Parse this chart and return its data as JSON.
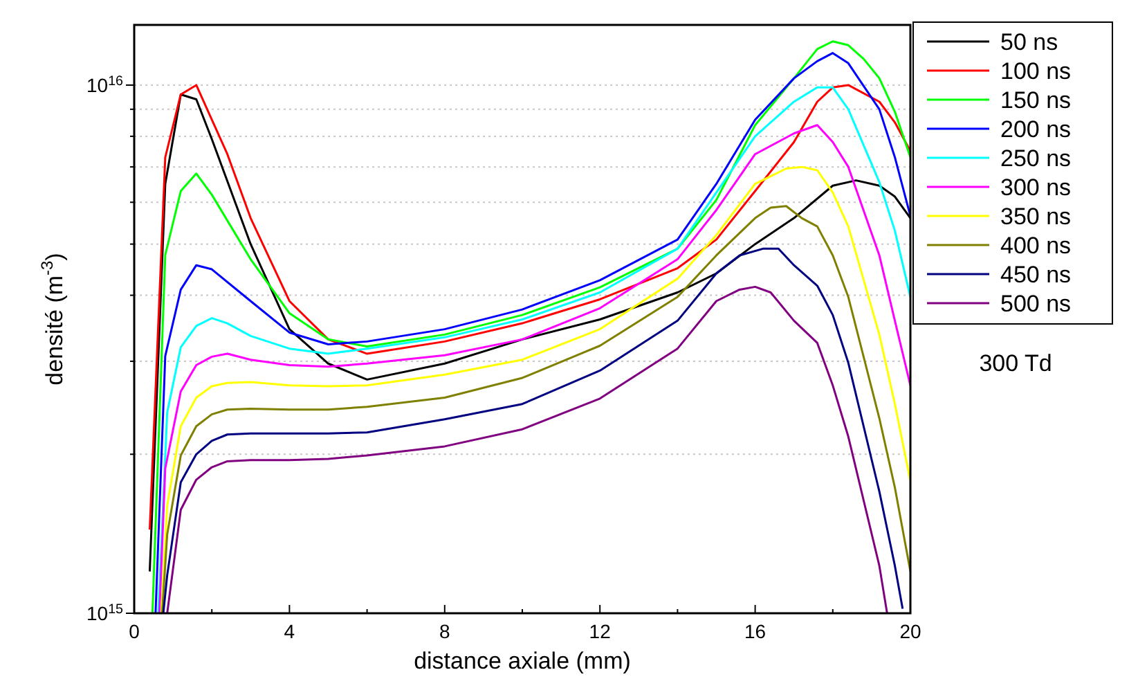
{
  "chart_data": {
    "type": "line",
    "xlabel": "distance axiale (mm)",
    "ylabel": "densité (m$^{-3}$)",
    "log": "y",
    "grid": "y",
    "legend": "right",
    "marker": "none",
    "line_style": "solid",
    "annotations": [
      "300 Td"
    ],
    "xlim": [
      0,
      20
    ],
    "xticks": [
      0,
      {
        "value": 2,
        "label": null
      },
      4,
      {
        "value": 6,
        "label": null
      },
      8,
      {
        "value": 10,
        "label": null
      },
      12,
      {
        "value": 14,
        "label": null
      },
      16,
      {
        "value": 18,
        "label": null
      },
      20
    ],
    "ylim": [
      1000000000000000.0,
      1.3e+16
    ],
    "yticks": [
      {
        "value": 1000000000000000.0,
        "label": "10$^{15}$"
      },
      {
        "value": 2000000000000000.0,
        "label": null
      },
      {
        "value": 3000000000000000.0,
        "label": null
      },
      {
        "value": 4000000000000000.0,
        "label": null
      },
      {
        "value": 5000000000000000.0,
        "label": null
      },
      {
        "value": 6000000000000000.0,
        "label": null
      },
      {
        "value": 7000000000000000.0,
        "label": null
      },
      {
        "value": 8000000000000000.0,
        "label": null
      },
      {
        "value": 9000000000000000.0,
        "label": null
      },
      {
        "value": 1e+16,
        "label": "10$^{16}$"
      }
    ],
    "series": [
      {
        "name": "50 ns",
        "color": "#000000",
        "x": [
          0.4,
          0.8,
          1.2,
          1.6,
          2,
          3,
          4,
          5,
          6,
          8,
          10,
          12,
          14,
          15,
          16,
          17,
          18,
          18.6,
          19.2,
          19.6,
          20
        ],
        "values": [
          1200000000000000.0,
          6500000000000000.0,
          9600000000000000.0,
          9400000000000000.0,
          7900000000000000.0,
          5000000000000000.0,
          3450000000000000.0,
          2970000000000000.0,
          2770000000000000.0,
          2970000000000000.0,
          3300000000000000.0,
          3600000000000000.0,
          4050000000000000.0,
          4400000000000000.0,
          5000000000000000.0,
          5600000000000000.0,
          6450000000000000.0,
          6600000000000000.0,
          6450000000000000.0,
          6150000000000000.0,
          5600000000000000.0
        ]
      },
      {
        "name": "100 ns",
        "color": "#ff0000",
        "x": [
          0.4,
          0.8,
          1.2,
          1.6,
          2,
          2.4,
          3,
          4,
          5,
          6,
          8,
          10,
          12,
          14,
          15,
          16,
          17,
          17.6,
          18,
          18.4,
          19.2,
          19.6,
          20
        ],
        "values": [
          1440000000000000.0,
          7300000000000000.0,
          9600000000000000.0,
          1e+16,
          8600000000000000.0,
          7400000000000000.0,
          5600000000000000.0,
          3900000000000000.0,
          3300000000000000.0,
          3100000000000000.0,
          3270000000000000.0,
          3540000000000000.0,
          3930000000000000.0,
          4500000000000000.0,
          5100000000000000.0,
          6300000000000000.0,
          7800000000000000.0,
          9300000000000000.0,
          9900000000000000.0,
          1e+16,
          9300000000000000.0,
          8500000000000000.0,
          7500000000000000.0
        ]
      },
      {
        "name": "150 ns",
        "color": "#00ff00",
        "x": [
          0.47,
          0.8,
          1.2,
          1.6,
          2,
          3,
          4,
          5,
          6,
          8,
          10,
          12,
          14,
          15,
          16,
          17,
          17.6,
          18,
          18.4,
          18.8,
          19.2,
          19.6,
          20
        ],
        "values": [
          1000000000000000.0,
          4770000000000000.0,
          6300000000000000.0,
          6800000000000000.0,
          6200000000000000.0,
          4680000000000000.0,
          3700000000000000.0,
          3300000000000000.0,
          3200000000000000.0,
          3370000000000000.0,
          3670000000000000.0,
          4140000000000000.0,
          4900000000000000.0,
          6060000000000000.0,
          8400000000000000.0,
          1.03e+16,
          1.17e+16,
          1.21e+16,
          1.19e+16,
          1.12e+16,
          1.03e+16,
          8900000000000000.0,
          7300000000000000.0
        ]
      },
      {
        "name": "200 ns",
        "color": "#0000ff",
        "x": [
          0.55,
          0.8,
          1.2,
          1.6,
          2,
          3,
          4,
          5,
          6,
          8,
          10,
          12,
          14,
          15,
          16,
          17,
          17.6,
          18,
          18.4,
          19.2,
          19.6,
          20
        ],
        "values": [
          1000000000000000.0,
          3070000000000000.0,
          4100000000000000.0,
          4560000000000000.0,
          4480000000000000.0,
          3900000000000000.0,
          3400000000000000.0,
          3230000000000000.0,
          3270000000000000.0,
          3450000000000000.0,
          3760000000000000.0,
          4270000000000000.0,
          5100000000000000.0,
          6500000000000000.0,
          8600000000000000.0,
          1.03e+16,
          1.11e+16,
          1.15e+16,
          1.1e+16,
          9000000000000000.0,
          7300000000000000.0,
          5650000000000000.0
        ]
      },
      {
        "name": "250 ns",
        "color": "#00ffff",
        "x": [
          0.62,
          0.85,
          1.2,
          1.6,
          2,
          2.4,
          3,
          4,
          5,
          6,
          8,
          10,
          12,
          14,
          15,
          16,
          17,
          17.6,
          18,
          18.4,
          19.2,
          19.6,
          20
        ],
        "values": [
          1000000000000000.0,
          2400000000000000.0,
          3190000000000000.0,
          3500000000000000.0,
          3620000000000000.0,
          3540000000000000.0,
          3350000000000000.0,
          3170000000000000.0,
          3100000000000000.0,
          3170000000000000.0,
          3330000000000000.0,
          3600000000000000.0,
          4050000000000000.0,
          4900000000000000.0,
          6260000000000000.0,
          8000000000000000.0,
          9300000000000000.0,
          9900000000000000.0,
          9900000000000000.0,
          9000000000000000.0,
          6550000000000000.0,
          5300000000000000.0,
          3970000000000000.0
        ]
      },
      {
        "name": "300 ns",
        "color": "#ff00ff",
        "x": [
          0.65,
          0.8,
          1.2,
          1.6,
          2,
          2.4,
          3,
          4,
          5,
          6,
          8,
          10,
          12,
          14,
          15,
          16,
          17,
          17.6,
          18,
          18.4,
          19.2,
          19.6,
          20
        ],
        "values": [
          1000000000000000.0,
          1880000000000000.0,
          2630000000000000.0,
          2950000000000000.0,
          3060000000000000.0,
          3100000000000000.0,
          3020000000000000.0,
          2950000000000000.0,
          2930000000000000.0,
          2970000000000000.0,
          3080000000000000.0,
          3300000000000000.0,
          3780000000000000.0,
          4680000000000000.0,
          5800000000000000.0,
          7400000000000000.0,
          8100000000000000.0,
          8400000000000000.0,
          7800000000000000.0,
          7000000000000000.0,
          4760000000000000.0,
          3580000000000000.0,
          2700000000000000.0
        ]
      },
      {
        "name": "350 ns",
        "color": "#ffff00",
        "x": [
          0.7,
          0.85,
          1.2,
          1.6,
          2,
          2.4,
          3,
          4,
          5,
          6,
          8,
          10,
          12,
          14,
          15,
          16,
          16.8,
          17.2,
          17.6,
          18,
          18.4,
          19.2,
          19.6,
          20
        ],
        "values": [
          1000000000000000.0,
          1600000000000000.0,
          2260000000000000.0,
          2560000000000000.0,
          2690000000000000.0,
          2730000000000000.0,
          2740000000000000.0,
          2700000000000000.0,
          2690000000000000.0,
          2700000000000000.0,
          2830000000000000.0,
          3020000000000000.0,
          3450000000000000.0,
          4300000000000000.0,
          5200000000000000.0,
          6500000000000000.0,
          6950000000000000.0,
          7000000000000000.0,
          6900000000000000.0,
          6260000000000000.0,
          5400000000000000.0,
          3370000000000000.0,
          2490000000000000.0,
          1780000000000000.0
        ]
      },
      {
        "name": "400 ns",
        "color": "#808000",
        "x": [
          0.72,
          0.85,
          1.2,
          1.6,
          2,
          2.4,
          3,
          4,
          5,
          6,
          8,
          10,
          12,
          14,
          15,
          16,
          16.4,
          16.8,
          17.2,
          17.6,
          18,
          18.4,
          19.2,
          19.6,
          20
        ],
        "values": [
          1000000000000000.0,
          1410000000000000.0,
          1990000000000000.0,
          2260000000000000.0,
          2380000000000000.0,
          2430000000000000.0,
          2440000000000000.0,
          2430000000000000.0,
          2430000000000000.0,
          2460000000000000.0,
          2560000000000000.0,
          2790000000000000.0,
          3210000000000000.0,
          3970000000000000.0,
          4760000000000000.0,
          5600000000000000.0,
          5860000000000000.0,
          5900000000000000.0,
          5600000000000000.0,
          5400000000000000.0,
          4760000000000000.0,
          3970000000000000.0,
          2340000000000000.0,
          1730000000000000.0,
          1200000000000000.0
        ]
      },
      {
        "name": "450 ns",
        "color": "#000080",
        "x": [
          0.75,
          0.85,
          1.2,
          1.6,
          2,
          2.4,
          3,
          4,
          5,
          6,
          8,
          10,
          12,
          14,
          15,
          15.6,
          16.2,
          16.6,
          17,
          17.6,
          18,
          18.4,
          19.2,
          19.6,
          19.8
        ],
        "values": [
          1000000000000000.0,
          1180000000000000.0,
          1770000000000000.0,
          2000000000000000.0,
          2120000000000000.0,
          2180000000000000.0,
          2190000000000000.0,
          2190000000000000.0,
          2190000000000000.0,
          2200000000000000.0,
          2330000000000000.0,
          2490000000000000.0,
          2880000000000000.0,
          3580000000000000.0,
          4400000000000000.0,
          4760000000000000.0,
          4900000000000000.0,
          4900000000000000.0,
          4560000000000000.0,
          4170000000000000.0,
          3670000000000000.0,
          2980000000000000.0,
          1700000000000000.0,
          1230000000000000.0,
          1020000000000000.0
        ]
      },
      {
        "name": "500 ns",
        "color": "#800080",
        "x": [
          0.85,
          1.2,
          1.6,
          2,
          2.4,
          3,
          4,
          5,
          6,
          8,
          10,
          12,
          14,
          15,
          15.6,
          16,
          16.4,
          17,
          17.6,
          18,
          18.4,
          19.2,
          19.4
        ],
        "values": [
          1000000000000000.0,
          1570000000000000.0,
          1790000000000000.0,
          1890000000000000.0,
          1940000000000000.0,
          1950000000000000.0,
          1950000000000000.0,
          1960000000000000.0,
          1990000000000000.0,
          2070000000000000.0,
          2230000000000000.0,
          2550000000000000.0,
          3170000000000000.0,
          3900000000000000.0,
          4100000000000000.0,
          4150000000000000.0,
          4050000000000000.0,
          3580000000000000.0,
          3250000000000000.0,
          2700000000000000.0,
          2160000000000000.0,
          1230000000000000.0,
          1000000000000000.0
        ]
      }
    ]
  }
}
